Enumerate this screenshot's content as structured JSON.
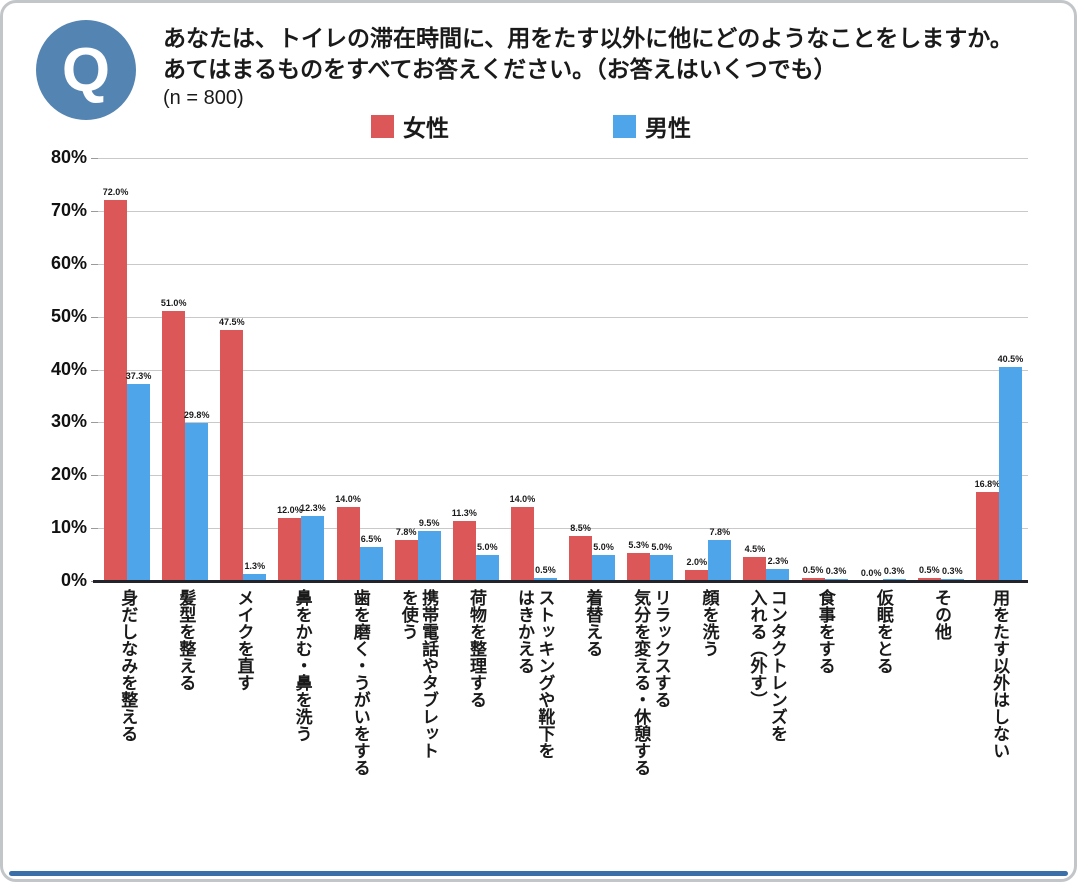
{
  "header": {
    "q_badge": "Q",
    "question_line1": "あなたは、トイレの滞在時間に、用をたす以外に他にどのようなことをしますか。",
    "question_line2": "あてはまるものをすべてお答えください。（お答えはいくつでも）",
    "sample_size": "(n = 800)"
  },
  "legend": [
    {
      "label": "女性",
      "color": "#DC5757"
    },
    {
      "label": "男性",
      "color": "#4FA5E9"
    }
  ],
  "chart_data": {
    "type": "bar",
    "title": "あなたは、トイレの滞在時間に、用をたす以外に他にどのようなことをしますか。あてはまるものをすべてお答えください。（お答えはいくつでも）(n = 800)",
    "categories": [
      "身だしなみを整える",
      "髪型を整える",
      "メイクを直す",
      "鼻をかむ・鼻を洗う",
      "歯を磨く・うがいをする",
      "携帯電話やタブレット\nを使う",
      "荷物を整理する",
      "ストッキングや靴下を\nはきかえる",
      "着替える",
      "リラックスする\n気分を変える・休憩する",
      "顔を洗う",
      "コンタクトレンズを\n入れる（外す）",
      "食事をする",
      "仮眠をとる",
      "その他",
      "用をたす以外はしない"
    ],
    "series": [
      {
        "name": "女性",
        "color": "#DC5757",
        "values": [
          72.0,
          51.0,
          47.5,
          12.0,
          14.0,
          7.8,
          11.3,
          14.0,
          8.5,
          5.3,
          2.0,
          4.5,
          0.5,
          0.0,
          0.5,
          16.8
        ]
      },
      {
        "name": "男性",
        "color": "#4FA5E9",
        "values": [
          37.3,
          29.8,
          1.3,
          12.3,
          6.5,
          9.5,
          5.0,
          0.5,
          5.0,
          5.0,
          7.8,
          2.3,
          0.3,
          0.3,
          0.3,
          40.5
        ]
      }
    ],
    "xlabel": "",
    "ylabel": "",
    "ylim": [
      0,
      80
    ],
    "ytick_step": 10,
    "yticks": [
      "0%",
      "10%",
      "20%",
      "30%",
      "40%",
      "50%",
      "60%",
      "70%",
      "80%"
    ],
    "value_label_suffix": "%",
    "grid": true,
    "legend_position": "top"
  },
  "colors": {
    "female_bar": "#DC5757",
    "male_bar": "#4FA5E9",
    "q_badge_bg": "#5484B2",
    "bottom_accent": "#3B6FA8",
    "gridline": "#c9c9c9",
    "axis": "#23232b",
    "card_border": "#c3c6c9"
  }
}
